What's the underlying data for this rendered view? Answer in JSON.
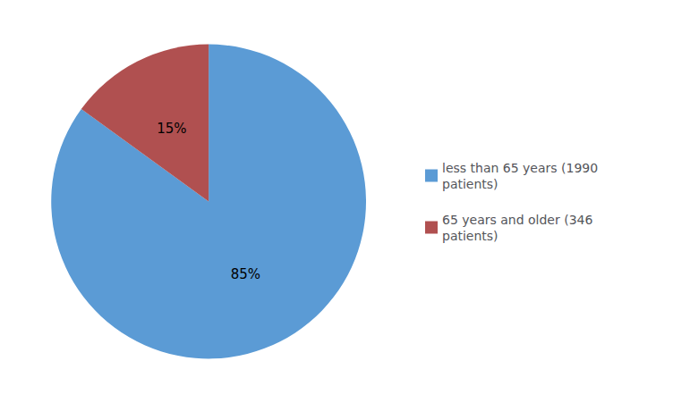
{
  "chart_data": {
    "type": "pie",
    "categories": [
      "less than 65 years (1990\npatients)",
      "65 years and older (346\npatients)"
    ],
    "values": [
      85,
      15
    ],
    "value_labels": [
      "85%",
      "15%"
    ],
    "colors": [
      "#5B9BD5",
      "#B05050"
    ],
    "data_labels": true,
    "legend": "right"
  }
}
